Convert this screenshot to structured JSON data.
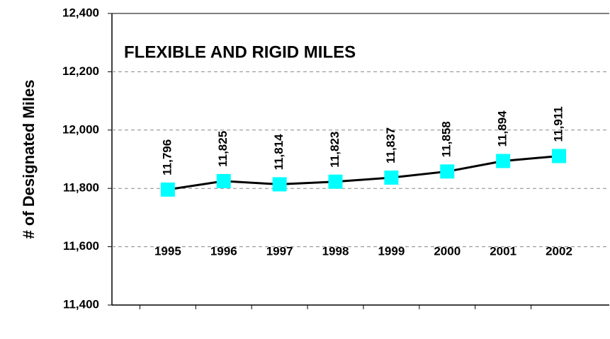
{
  "chart_data": {
    "type": "line",
    "title": "FLEXIBLE AND RIGID MILES",
    "y_label": "# of Designated Miles",
    "categories": [
      "1995",
      "1996",
      "1997",
      "1998",
      "1999",
      "2000",
      "2001",
      "2002"
    ],
    "series": [
      {
        "name": "Designated Miles",
        "color": "#000000",
        "marker_color": "#00ffff",
        "values": [
          11796,
          11825,
          11814,
          11823,
          11837,
          11858,
          11894,
          11911
        ],
        "value_labels": [
          "11,796",
          "11,825",
          "11,814",
          "11,823",
          "11,837",
          "11,858",
          "11,894",
          "11,911"
        ]
      }
    ],
    "ylim": [
      11400,
      12400
    ],
    "yticks": [
      {
        "value": 11400,
        "label": "11,400"
      },
      {
        "value": 11600,
        "label": "11,600"
      },
      {
        "value": 11800,
        "label": "11,800"
      },
      {
        "value": 12000,
        "label": "12,000"
      },
      {
        "value": 12200,
        "label": "12,200"
      },
      {
        "value": 12400,
        "label": "12,400"
      }
    ],
    "grid": true
  }
}
